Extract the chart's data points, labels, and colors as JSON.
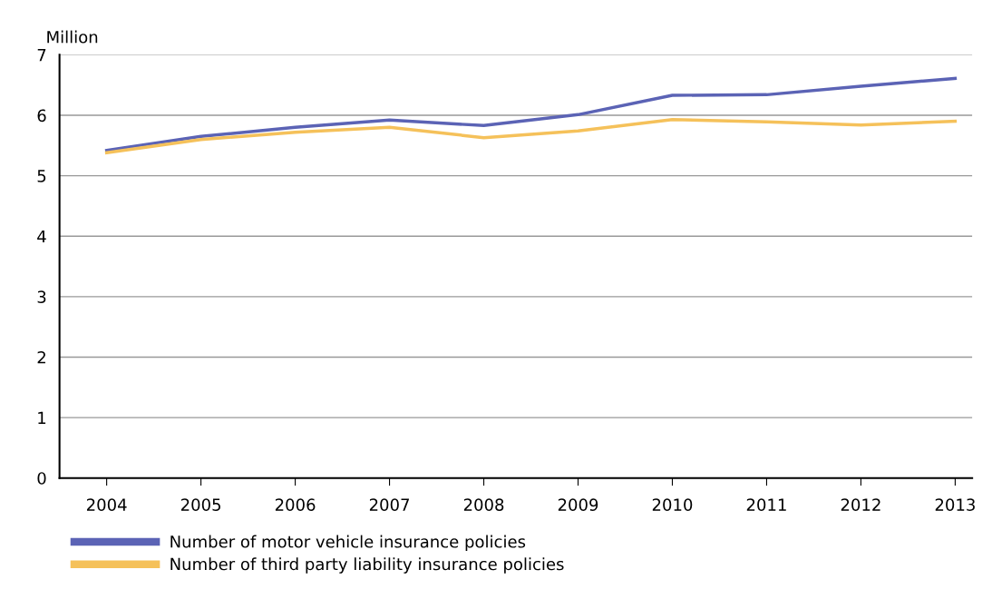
{
  "chart_data": {
    "type": "line",
    "ylabel": "Million",
    "categories": [
      "2004",
      "2005",
      "2006",
      "2007",
      "2008",
      "2009",
      "2010",
      "2011",
      "2012",
      "2013"
    ],
    "series": [
      {
        "name": "Number of motor vehicle insurance policies",
        "color": "#5b63b5",
        "values": [
          5.42,
          5.65,
          5.8,
          5.92,
          5.83,
          6.01,
          6.33,
          6.34,
          6.48,
          6.61
        ]
      },
      {
        "name": "Number of third party liability insurance policies",
        "color": "#f5c15a",
        "values": [
          5.38,
          5.6,
          5.72,
          5.8,
          5.63,
          5.74,
          5.93,
          5.89,
          5.84,
          5.9
        ]
      }
    ],
    "ylim": [
      0,
      7
    ],
    "yticks": [
      0,
      1,
      2,
      3,
      4,
      5,
      6,
      7
    ],
    "grid": "y",
    "legend": "bottom",
    "marker": "none",
    "line_style": "solid"
  }
}
